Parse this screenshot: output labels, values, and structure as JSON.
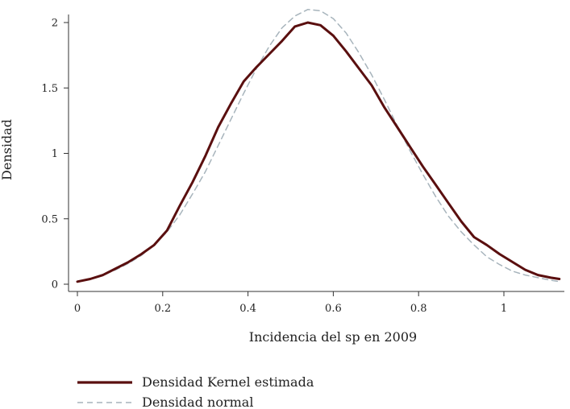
{
  "chart_data": {
    "type": "line",
    "title": "",
    "xlabel": "Incidencia del sp en 2009",
    "ylabel": "Densidad",
    "xlim": [
      0,
      1.13
    ],
    "ylim": [
      0,
      2.1
    ],
    "x_ticks": [
      0,
      0.2,
      0.4,
      0.6,
      0.8,
      1
    ],
    "x_tick_labels": [
      "0",
      "0.2",
      "0.4",
      "0.6",
      "0.8",
      "1"
    ],
    "y_ticks": [
      0,
      0.5,
      1,
      1.5,
      2
    ],
    "y_tick_labels": [
      "0",
      "0.5",
      "1",
      "1.5",
      "2"
    ],
    "grid": false,
    "legend_position": "bottom-left",
    "series": [
      {
        "name": "Densidad Kernel estimada",
        "color": "#5a0f0f",
        "style": "solid",
        "x": [
          0.0,
          0.03,
          0.06,
          0.09,
          0.12,
          0.15,
          0.18,
          0.21,
          0.24,
          0.27,
          0.3,
          0.33,
          0.36,
          0.39,
          0.42,
          0.45,
          0.48,
          0.51,
          0.54,
          0.57,
          0.6,
          0.63,
          0.66,
          0.69,
          0.72,
          0.75,
          0.78,
          0.81,
          0.84,
          0.87,
          0.9,
          0.93,
          0.96,
          0.99,
          1.02,
          1.05,
          1.08,
          1.11,
          1.13
        ],
        "y": [
          0.02,
          0.04,
          0.07,
          0.12,
          0.17,
          0.23,
          0.3,
          0.41,
          0.6,
          0.78,
          0.98,
          1.2,
          1.38,
          1.55,
          1.66,
          1.76,
          1.86,
          1.97,
          2.0,
          1.98,
          1.9,
          1.78,
          1.65,
          1.52,
          1.35,
          1.2,
          1.05,
          0.9,
          0.76,
          0.62,
          0.48,
          0.36,
          0.3,
          0.23,
          0.17,
          0.11,
          0.07,
          0.05,
          0.04
        ]
      },
      {
        "name": "Densidad normal",
        "color": "#a7b4bc",
        "style": "dashed",
        "x": [
          0.0,
          0.03,
          0.06,
          0.09,
          0.12,
          0.15,
          0.18,
          0.21,
          0.24,
          0.27,
          0.3,
          0.33,
          0.36,
          0.39,
          0.42,
          0.45,
          0.48,
          0.51,
          0.54,
          0.57,
          0.6,
          0.63,
          0.66,
          0.69,
          0.72,
          0.75,
          0.78,
          0.81,
          0.84,
          0.87,
          0.9,
          0.93,
          0.96,
          0.99,
          1.02,
          1.05,
          1.08,
          1.11,
          1.13
        ],
        "y": [
          0.02,
          0.04,
          0.07,
          0.11,
          0.16,
          0.22,
          0.3,
          0.4,
          0.53,
          0.69,
          0.86,
          1.06,
          1.26,
          1.46,
          1.65,
          1.82,
          1.96,
          2.05,
          2.1,
          2.09,
          2.03,
          1.92,
          1.77,
          1.6,
          1.41,
          1.21,
          1.02,
          0.84,
          0.67,
          0.52,
          0.4,
          0.3,
          0.21,
          0.15,
          0.1,
          0.07,
          0.05,
          0.03,
          0.02
        ]
      }
    ]
  }
}
